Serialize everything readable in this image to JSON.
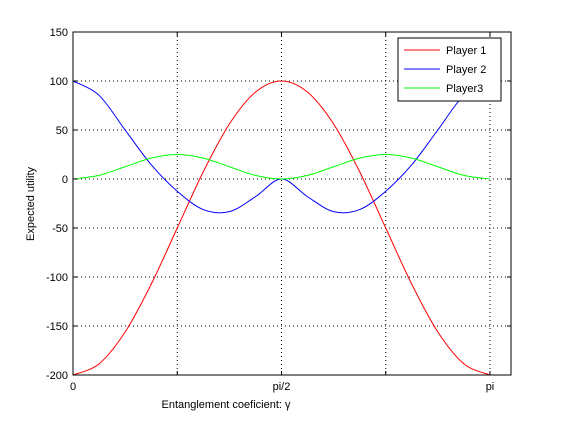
{
  "chart_data": {
    "type": "line",
    "xlabel": "Entanglement coeficient: γ",
    "ylabel": "Expected utility",
    "xlim": [
      0,
      3.3
    ],
    "ylim": [
      -200,
      150
    ],
    "x_ticks": [
      {
        "value": 0,
        "label": "0"
      },
      {
        "value": 1.5708,
        "label": "pi/2"
      },
      {
        "value": 3.1416,
        "label": "pi"
      }
    ],
    "x_grid": [
      0.7854,
      1.5708,
      2.3562,
      3.1416
    ],
    "y_ticks": [
      -200,
      -150,
      -100,
      -50,
      0,
      50,
      100,
      150
    ],
    "grid": true,
    "legend_position": "top-right",
    "x": [
      0,
      0.1963,
      0.3927,
      0.589,
      0.7854,
      0.9817,
      1.1781,
      1.3744,
      1.5708,
      1.7671,
      1.9635,
      2.1598,
      2.3562,
      2.5525,
      2.7489,
      2.9452,
      3.1416
    ],
    "series": [
      {
        "name": "Player 1",
        "color": "#ff0000",
        "values": [
          -200,
          -188.6,
          -156.1,
          -107.4,
          -50,
          7.4,
          56.1,
          88.6,
          100,
          88.6,
          56.1,
          7.4,
          -50,
          -107.4,
          -156.1,
          -188.6,
          -200
        ]
      },
      {
        "name": "Player 2",
        "color": "#0000ff",
        "values": [
          100,
          85.4,
          50,
          14.6,
          -12.5,
          -31.2,
          -33.3,
          -18.1,
          0,
          -18.1,
          -33.3,
          -31.2,
          -12.5,
          14.6,
          50,
          85.4,
          100
        ]
      },
      {
        "name": "Player3",
        "color": "#00ff00",
        "values": [
          0,
          3.66,
          12.5,
          21.3,
          25,
          21.3,
          12.5,
          3.66,
          0,
          3.66,
          12.5,
          21.3,
          25,
          21.3,
          12.5,
          3.66,
          0
        ]
      }
    ]
  }
}
